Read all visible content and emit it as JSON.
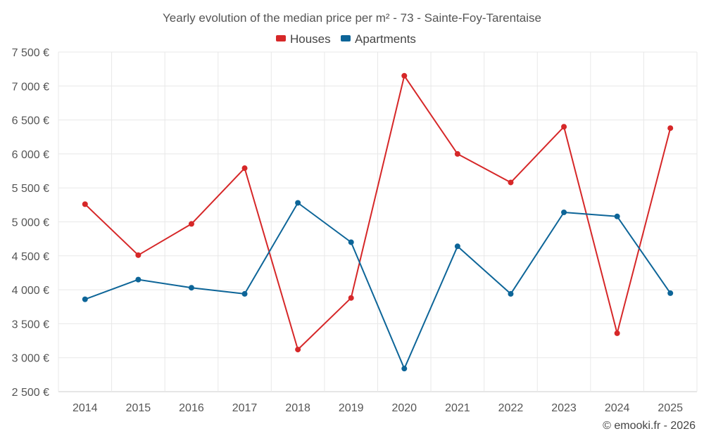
{
  "chart_data": {
    "type": "line",
    "title": "Yearly evolution of the median price per m² - 73 - Sainte-Foy-Tarentaise",
    "categories": [
      "2014",
      "2015",
      "2016",
      "2017",
      "2018",
      "2019",
      "2020",
      "2021",
      "2022",
      "2023",
      "2024",
      "2025"
    ],
    "series": [
      {
        "name": "Houses",
        "color": "#d62728",
        "values": [
          5260,
          4510,
          4970,
          5790,
          3120,
          3880,
          7150,
          6000,
          5580,
          6400,
          3360,
          6380
        ]
      },
      {
        "name": "Apartments",
        "color": "#0d6598",
        "values": [
          3860,
          4150,
          4030,
          3940,
          5280,
          4700,
          2840,
          4640,
          3940,
          5140,
          5080,
          3950
        ]
      }
    ],
    "y_ticks": [
      2500,
      3000,
      3500,
      4000,
      4500,
      5000,
      5500,
      6000,
      6500,
      7000,
      7500
    ],
    "y_tick_labels": [
      "2 500 €",
      "3 000 €",
      "3 500 €",
      "4 000 €",
      "4 500 €",
      "5 000 €",
      "5 500 €",
      "6 000 €",
      "6 500 €",
      "7 000 €",
      "7 500 €"
    ],
    "ylim": [
      2500,
      7500
    ],
    "xlabel": "",
    "ylabel": "",
    "legend_position": "top-center",
    "grid": true,
    "credit": "© emooki.fr - 2026"
  }
}
